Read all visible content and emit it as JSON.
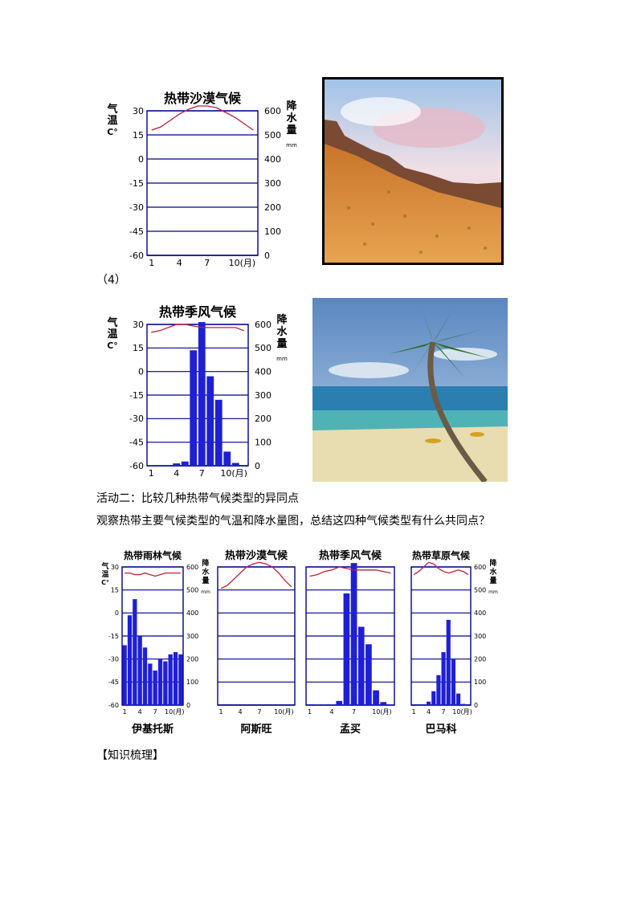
{
  "labels": {
    "item4": "（4）",
    "activity2": "活动二：比较几种热带气候类型的异同点",
    "question": "观察热带主要气候类型的气温和降水量图，总结这四种气候类型有什么共同点？",
    "knowledge": "【知识梳理】"
  },
  "axis": {
    "temp_label": "气温C°",
    "precip_label": "降水量",
    "precip_unit": "mm",
    "temp_ticks": [
      "30",
      "15",
      "0",
      "-15",
      "-30",
      "-45",
      "-60"
    ],
    "precip_ticks": [
      "600",
      "500",
      "400",
      "300",
      "200",
      "100",
      "0"
    ],
    "month_ticks": [
      "1",
      "4",
      "7",
      "10(月)"
    ]
  },
  "photos": {
    "desert": {
      "icon": "desert-landscape-photo"
    },
    "beach": {
      "icon": "palm-beach-photo"
    }
  },
  "chart_data": [
    {
      "type": "bar",
      "title": "热带沙漠气候",
      "temp_c": [
        18,
        20,
        24,
        28,
        31,
        33,
        33,
        32,
        29,
        26,
        22,
        18
      ],
      "precip_mm": [
        0,
        0,
        0,
        0,
        0,
        0,
        0,
        0,
        0,
        0,
        0,
        0
      ],
      "ylim_temp": [
        -60,
        30
      ],
      "ylim_precip": [
        0,
        600
      ]
    },
    {
      "type": "bar",
      "title": "热带季风气候",
      "temp_c": [
        25,
        26,
        28,
        30,
        30,
        29,
        28,
        28,
        28,
        28,
        28,
        26
      ],
      "precip_mm": [
        2,
        1,
        1,
        10,
        18,
        490,
        610,
        380,
        280,
        60,
        12,
        3
      ],
      "ylim_temp": [
        -60,
        30
      ],
      "ylim_precip": [
        0,
        600
      ]
    },
    {
      "type": "bar",
      "title": "热带雨林气候",
      "caption": "伊基托斯",
      "temp_c": [
        26,
        26,
        25,
        25,
        26,
        25,
        24,
        25,
        26,
        26,
        26,
        26
      ],
      "precip_mm": [
        260,
        390,
        460,
        300,
        250,
        180,
        150,
        200,
        190,
        220,
        230,
        220
      ],
      "ylim_temp": [
        -60,
        30
      ],
      "ylim_precip": [
        0,
        600
      ]
    },
    {
      "type": "bar",
      "title": "热带沙漠气候",
      "caption": "阿斯旺",
      "temp_c": [
        16,
        18,
        22,
        26,
        30,
        32,
        33,
        32,
        30,
        26,
        21,
        17
      ],
      "precip_mm": [
        0,
        0,
        0,
        0,
        0,
        0,
        0,
        0,
        0,
        0,
        0,
        0
      ],
      "ylim_temp": [
        -60,
        30
      ],
      "ylim_precip": [
        0,
        600
      ]
    },
    {
      "type": "bar",
      "title": "热带季风气候",
      "caption": "孟买",
      "temp_c": [
        24,
        25,
        27,
        28,
        30,
        29,
        28,
        28,
        28,
        28,
        27,
        26
      ],
      "precip_mm": [
        3,
        2,
        2,
        1,
        18,
        485,
        617,
        340,
        264,
        64,
        13,
        3
      ],
      "ylim_temp": [
        -60,
        30
      ],
      "ylim_precip": [
        0,
        600
      ]
    },
    {
      "type": "bar",
      "title": "热带草原气候",
      "caption": "巴马科",
      "temp_c": [
        25,
        27,
        30,
        33,
        32,
        29,
        27,
        26,
        27,
        28,
        27,
        25
      ],
      "precip_mm": [
        0,
        0,
        3,
        15,
        60,
        130,
        230,
        370,
        200,
        50,
        5,
        0
      ],
      "ylim_temp": [
        -60,
        30
      ],
      "ylim_precip": [
        0,
        600
      ]
    }
  ]
}
